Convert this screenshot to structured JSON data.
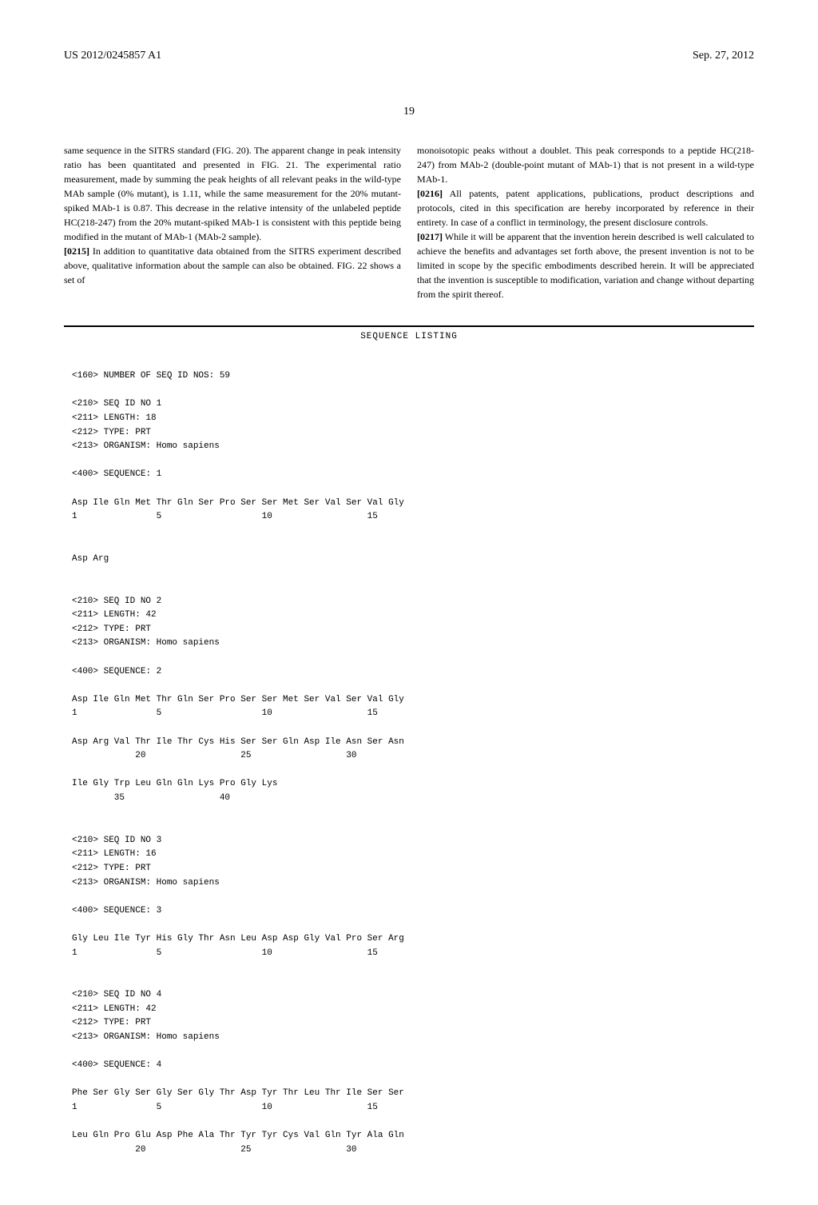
{
  "header": {
    "pub_number": "US 2012/0245857 A1",
    "date": "Sep. 27, 2012"
  },
  "page_number": "19",
  "left_column": {
    "para1": "same sequence in the SITRS standard (FIG. 20). The apparent change in peak intensity ratio has been quantitated and presented in FIG. 21. The experimental ratio measurement, made by summing the peak heights of all relevant peaks in the wild-type MAb sample (0% mutant), is 1.11, while the same measurement for the 20% mutant-spiked MAb-1 is 0.87. This decrease in the relative intensity of the unlabeled peptide HC(218-247) from the 20% mutant-spiked MAb-1 is consistent with this peptide being modified in the mutant of MAb-1 (MAb-2 sample).",
    "para2_num": "[0215]",
    "para2": "   In addition to quantitative data obtained from the SITRS experiment described above, qualitative information about the sample can also be obtained. FIG. 22 shows a set of"
  },
  "right_column": {
    "para1": "monoisotopic peaks without a doublet. This peak corresponds to a peptide HC(218-247) from MAb-2 (double-point mutant of MAb-1) that is not present in a wild-type MAb-1.",
    "para2_num": "[0216]",
    "para2": "   All patents, patent applications, publications, product descriptions and protocols, cited in this specification are hereby incorporated by reference in their entirety. In case of a conflict in terminology, the present disclosure controls.",
    "para3_num": "[0217]",
    "para3": "   While it will be apparent that the invention herein described is well calculated to achieve the benefits and advantages set forth above, the present invention is not to be limited in scope by the specific embodiments described herein. It will be appreciated that the invention is susceptible to modification, variation and change without departing from the spirit thereof."
  },
  "sequence": {
    "title": "SEQUENCE LISTING",
    "header": "<160> NUMBER OF SEQ ID NOS: 59",
    "seq1": {
      "l1": "<210> SEQ ID NO 1",
      "l2": "<211> LENGTH: 18",
      "l3": "<212> TYPE: PRT",
      "l4": "<213> ORGANISM: Homo sapiens",
      "l5": "<400> SEQUENCE: 1",
      "r1": "Asp Ile Gln Met Thr Gln Ser Pro Ser Ser Met Ser Val Ser Val Gly",
      "r1n": "1               5                   10                  15",
      "r2": "Asp Arg"
    },
    "seq2": {
      "l1": "<210> SEQ ID NO 2",
      "l2": "<211> LENGTH: 42",
      "l3": "<212> TYPE: PRT",
      "l4": "<213> ORGANISM: Homo sapiens",
      "l5": "<400> SEQUENCE: 2",
      "r1": "Asp Ile Gln Met Thr Gln Ser Pro Ser Ser Met Ser Val Ser Val Gly",
      "r1n": "1               5                   10                  15",
      "r2": "Asp Arg Val Thr Ile Thr Cys His Ser Ser Gln Asp Ile Asn Ser Asn",
      "r2n": "            20                  25                  30",
      "r3": "Ile Gly Trp Leu Gln Gln Lys Pro Gly Lys",
      "r3n": "        35                  40"
    },
    "seq3": {
      "l1": "<210> SEQ ID NO 3",
      "l2": "<211> LENGTH: 16",
      "l3": "<212> TYPE: PRT",
      "l4": "<213> ORGANISM: Homo sapiens",
      "l5": "<400> SEQUENCE: 3",
      "r1": "Gly Leu Ile Tyr His Gly Thr Asn Leu Asp Asp Gly Val Pro Ser Arg",
      "r1n": "1               5                   10                  15"
    },
    "seq4": {
      "l1": "<210> SEQ ID NO 4",
      "l2": "<211> LENGTH: 42",
      "l3": "<212> TYPE: PRT",
      "l4": "<213> ORGANISM: Homo sapiens",
      "l5": "<400> SEQUENCE: 4",
      "r1": "Phe Ser Gly Ser Gly Ser Gly Thr Asp Tyr Thr Leu Thr Ile Ser Ser",
      "r1n": "1               5                   10                  15",
      "r2": "Leu Gln Pro Glu Asp Phe Ala Thr Tyr Tyr Cys Val Gln Tyr Ala Gln",
      "r2n": "            20                  25                  30"
    }
  }
}
